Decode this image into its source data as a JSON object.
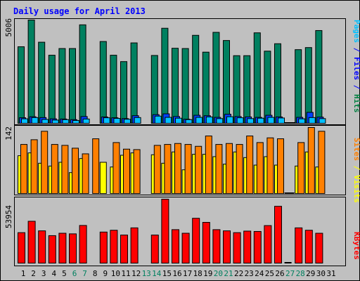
{
  "chart_data": [
    {
      "type": "bar",
      "title": "Daily usage for April 2013",
      "max_label": "5006",
      "side_label": [
        {
          "text": "Pages",
          "color": "#00c0ff"
        },
        {
          "text": " / ",
          "color": "#0000ff"
        },
        {
          "text": "Files",
          "color": "#0000ff"
        },
        {
          "text": " / ",
          "color": "#0000ff"
        },
        {
          "text": "Hits",
          "color": "#008040"
        }
      ],
      "categories": [
        "1",
        "2",
        "3",
        "4",
        "5",
        "6",
        "7",
        "8",
        "9",
        "10",
        "11",
        "12",
        "13",
        "14",
        "15",
        "16",
        "17",
        "18",
        "19",
        "20",
        "21",
        "22",
        "23",
        "24",
        "25",
        "26",
        "27",
        "28",
        "29",
        "30",
        "31"
      ],
      "weekend_days": [
        "6",
        "7",
        "13",
        "14",
        "20",
        "21",
        "27",
        "28"
      ],
      "series": [
        {
          "name": "Hits",
          "color": "#008060",
          "values": [
            3719,
            5006,
            3938,
            3312,
            3634,
            3634,
            4775,
            null,
            3972,
            3312,
            3004,
            3905,
            null,
            3300,
            4610,
            3647,
            3634,
            4270,
            3460,
            4413,
            4020,
            3290,
            3290,
            4390,
            3508,
            3865,
            0,
            3580,
            3680,
            4500,
            null
          ]
        },
        {
          "name": "Files",
          "color": "#0040ff",
          "values": [
            300,
            350,
            310,
            250,
            240,
            210,
            360,
            null,
            340,
            300,
            260,
            400,
            null,
            450,
            490,
            360,
            230,
            420,
            400,
            320,
            470,
            360,
            340,
            320,
            420,
            340,
            0,
            320,
            560,
            330,
            null
          ]
        },
        {
          "name": "Pages",
          "color": "#00c0ff",
          "values": [
            250,
            310,
            220,
            190,
            210,
            170,
            240,
            null,
            300,
            270,
            230,
            310,
            null,
            380,
            320,
            280,
            210,
            320,
            340,
            260,
            350,
            300,
            260,
            280,
            320,
            290,
            0,
            250,
            310,
            260,
            null
          ]
        }
      ]
    },
    {
      "type": "bar",
      "max_label": "142",
      "side_label": [
        {
          "text": "Sites",
          "color": "#ff8000"
        },
        {
          "text": " / ",
          "color": "#ffff00"
        },
        {
          "text": "Visits",
          "color": "#ffff00"
        }
      ],
      "categories": [
        "1",
        "2",
        "3",
        "4",
        "5",
        "6",
        "7",
        "8",
        "9",
        "10",
        "11",
        "12",
        "13",
        "14",
        "15",
        "16",
        "17",
        "18",
        "19",
        "20",
        "21",
        "22",
        "23",
        "24",
        "25",
        "26",
        "27",
        "28",
        "29",
        "30",
        "31"
      ],
      "series": [
        {
          "name": "Visits",
          "color": "#ffff00",
          "values": [
            82,
            88,
            66,
            60,
            68,
            46,
            76,
            null,
            68,
            58,
            83,
            88,
            null,
            84,
            66,
            90,
            52,
            85,
            85,
            80,
            64,
            90,
            78,
            62,
            80,
            62,
            0,
            60,
            90,
            58,
            null
          ]
        },
        {
          "name": "Sites",
          "color": "#ff8000",
          "values": [
            106,
            116,
            134,
            106,
            104,
            98,
            86,
            118,
            null,
            110,
            96,
            95,
            null,
            104,
            106,
            108,
            106,
            102,
            124,
            106,
            108,
            106,
            124,
            110,
            120,
            118,
            0,
            110,
            142,
            134,
            null
          ]
        }
      ]
    },
    {
      "type": "bar",
      "max_label": "53954",
      "side_label": [
        {
          "text": "KBytes",
          "color": "#ff0000"
        }
      ],
      "categories": [
        "1",
        "2",
        "3",
        "4",
        "5",
        "6",
        "7",
        "8",
        "9",
        "10",
        "11",
        "12",
        "13",
        "14",
        "15",
        "16",
        "17",
        "18",
        "19",
        "20",
        "21",
        "22",
        "23",
        "24",
        "25",
        "26",
        "27",
        "28",
        "29",
        "30",
        "31"
      ],
      "series": [
        {
          "name": "KBytes",
          "color": "#ff0000",
          "values": [
            26000,
            35500,
            27500,
            23500,
            25500,
            25000,
            32000,
            null,
            26500,
            28000,
            24000,
            30000,
            null,
            24000,
            53954,
            28500,
            25500,
            38000,
            34600,
            28500,
            27500,
            26000,
            27300,
            27000,
            31900,
            48000,
            0,
            30000,
            28000,
            25500,
            null
          ]
        }
      ]
    }
  ]
}
